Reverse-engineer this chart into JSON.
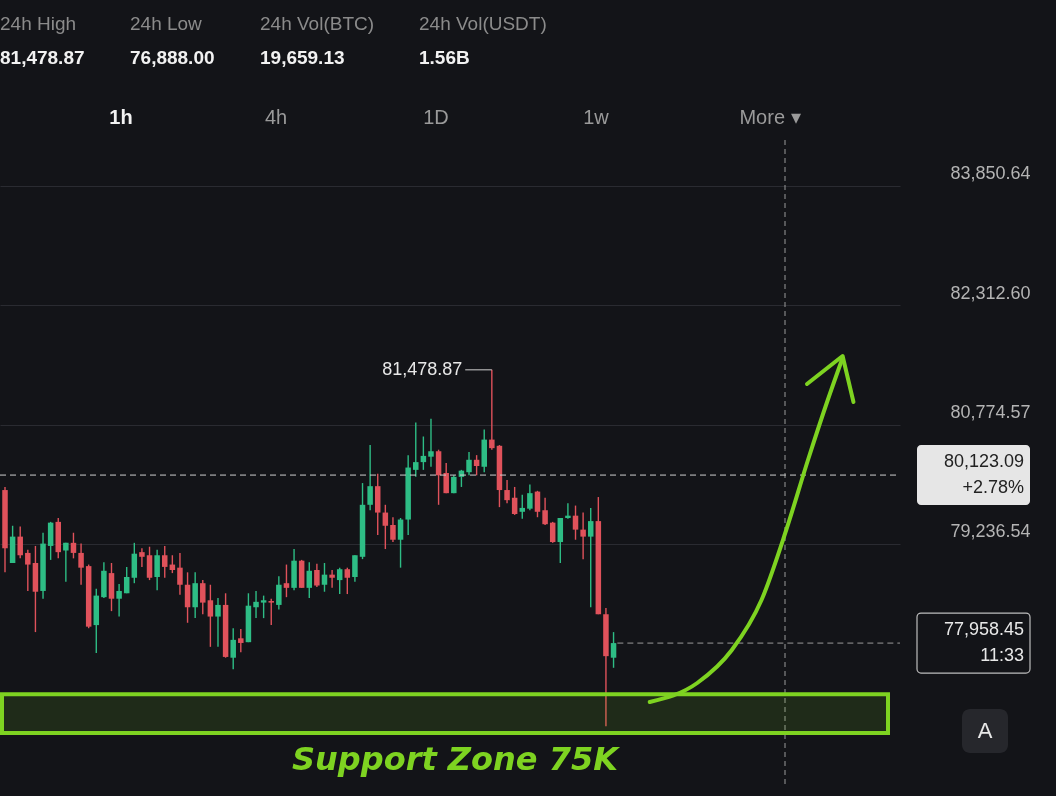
{
  "chart_data": {
    "type": "candlestick",
    "categories": [
      null,
      null,
      null,
      null,
      null,
      null,
      null,
      null,
      null,
      null,
      null,
      null,
      null,
      null,
      null,
      null,
      null,
      null,
      null,
      null,
      null,
      null,
      null,
      null,
      null,
      null,
      null,
      null,
      null,
      null,
      null,
      null,
      null,
      null,
      null,
      null,
      null,
      null,
      null,
      null,
      null,
      null,
      null,
      null,
      null,
      null,
      null,
      null,
      null,
      null,
      null,
      null,
      null,
      null,
      null,
      null,
      null,
      null,
      null,
      null,
      null,
      null,
      null,
      null,
      null,
      null,
      null,
      null,
      null,
      null,
      null,
      null,
      null,
      null,
      null,
      null,
      null,
      null,
      null,
      null,
      null,
      null,
      null,
      null,
      null,
      null,
      null,
      null,
      null,
      null,
      null,
      null,
      null,
      null,
      null,
      null,
      null,
      null,
      null,
      null,
      null,
      null,
      null,
      null,
      null,
      null,
      null,
      null,
      null,
      null,
      null,
      null,
      null,
      null,
      null,
      null,
      null,
      null
    ],
    "ohlc": [
      [
        79930,
        79970,
        78870,
        79180
      ],
      [
        78990,
        79470,
        78990,
        79330
      ],
      [
        79330,
        79460,
        79050,
        79090
      ],
      [
        79120,
        79160,
        78630,
        78970
      ],
      [
        78990,
        79210,
        78100,
        78620
      ],
      [
        78630,
        79380,
        78530,
        79240
      ],
      [
        79210,
        79520,
        79030,
        79510
      ],
      [
        79520,
        79570,
        79050,
        79130
      ],
      [
        79150,
        79250,
        78750,
        79250
      ],
      [
        79250,
        79380,
        79050,
        79120
      ],
      [
        79120,
        79240,
        78710,
        78930
      ],
      [
        78950,
        78970,
        78150,
        78170
      ],
      [
        78190,
        78660,
        77830,
        78570
      ],
      [
        78550,
        79000,
        78540,
        78890
      ],
      [
        78860,
        78990,
        78370,
        78530
      ],
      [
        78530,
        78720,
        78300,
        78630
      ],
      [
        78600,
        78940,
        78600,
        78810
      ],
      [
        78800,
        79250,
        78730,
        79110
      ],
      [
        79130,
        79180,
        78940,
        79070
      ],
      [
        79090,
        79200,
        78770,
        78800
      ],
      [
        78810,
        79160,
        78640,
        79090
      ],
      [
        79090,
        79210,
        78800,
        78940
      ],
      [
        78970,
        79090,
        78860,
        78900
      ],
      [
        78930,
        79120,
        78580,
        78710
      ],
      [
        78710,
        78870,
        78220,
        78420
      ],
      [
        78420,
        78870,
        78280,
        78730
      ],
      [
        78730,
        78770,
        78330,
        78480
      ],
      [
        78510,
        78710,
        77910,
        78300
      ],
      [
        78300,
        78540,
        77910,
        78450
      ],
      [
        78450,
        78600,
        77770,
        77780
      ],
      [
        77770,
        78150,
        77620,
        78000
      ],
      [
        78020,
        78140,
        77840,
        77960
      ],
      [
        77970,
        78600,
        77970,
        78440
      ],
      [
        78420,
        78630,
        78280,
        78490
      ],
      [
        78480,
        78570,
        78280,
        78510
      ],
      [
        78500,
        78530,
        78190,
        78480
      ],
      [
        78450,
        78820,
        78390,
        78710
      ],
      [
        78730,
        78970,
        78550,
        78670
      ],
      [
        78670,
        79170,
        78640,
        79020
      ],
      [
        79020,
        79030,
        78670,
        78670
      ],
      [
        78670,
        79000,
        78540,
        78890
      ],
      [
        78900,
        78980,
        78680,
        78700
      ],
      [
        78710,
        78990,
        78620,
        78840
      ],
      [
        78840,
        78900,
        78670,
        78800
      ],
      [
        78770,
        78930,
        78590,
        78910
      ],
      [
        78910,
        78930,
        78590,
        78800
      ],
      [
        78810,
        79090,
        78750,
        79090
      ],
      [
        79070,
        80020,
        79040,
        79740
      ],
      [
        79740,
        80510,
        79670,
        79980
      ],
      [
        79980,
        80140,
        79350,
        79640
      ],
      [
        79640,
        79740,
        79170,
        79470
      ],
      [
        79480,
        79580,
        79260,
        79290
      ],
      [
        79290,
        79570,
        78930,
        79550
      ],
      [
        79550,
        80380,
        79350,
        80220
      ],
      [
        80190,
        80800,
        80100,
        80290
      ],
      [
        80290,
        80620,
        80190,
        80370
      ],
      [
        80360,
        80850,
        80230,
        80430
      ],
      [
        80430,
        80450,
        79740,
        80120
      ],
      [
        80150,
        80280,
        79890,
        79890
      ],
      [
        79890,
        80120,
        79890,
        80100
      ],
      [
        80100,
        80190,
        79970,
        80180
      ],
      [
        80160,
        80420,
        80120,
        80320
      ],
      [
        80320,
        80380,
        80120,
        80240
      ],
      [
        80230,
        80710,
        80160,
        80580
      ],
      [
        80580,
        81478.87,
        80450,
        80470
      ],
      [
        80500,
        80510,
        79710,
        79930
      ],
      [
        79930,
        80060,
        79760,
        79800
      ],
      [
        79830,
        79970,
        79610,
        79620
      ],
      [
        79650,
        79870,
        79560,
        79700
      ],
      [
        79690,
        80000,
        79670,
        79890
      ],
      [
        79910,
        79920,
        79580,
        79650
      ],
      [
        79670,
        79830,
        79480,
        79490
      ],
      [
        79510,
        79520,
        79250,
        79260
      ],
      [
        79260,
        79570,
        78990,
        79570
      ],
      [
        79570,
        79760,
        79560,
        79600
      ],
      [
        79600,
        79730,
        79290,
        79420
      ],
      [
        79420,
        79640,
        79040,
        79330
      ],
      [
        79330,
        79700,
        78420,
        79530
      ],
      [
        79530,
        79840,
        78330,
        78330
      ],
      [
        78330,
        78410,
        76888.0,
        77790
      ],
      [
        77770,
        78100,
        77640,
        77958.45
      ],
      null,
      null,
      null,
      null,
      null,
      null,
      null,
      null,
      null,
      null,
      null,
      null,
      null,
      null,
      null,
      null,
      null,
      null,
      null,
      null,
      null,
      null,
      null,
      null,
      null,
      null,
      null,
      null,
      null,
      null,
      null,
      null,
      null,
      null,
      null,
      null,
      null
    ],
    "colors": [
      "#e0525b",
      "#2ebd85",
      "#e0525b",
      "#e0525b",
      "#e0525b",
      "#2ebd85",
      "#2ebd85",
      "#e0525b",
      "#2ebd85",
      "#e0525b",
      "#e0525b",
      "#e0525b",
      "#2ebd85",
      "#2ebd85",
      "#e0525b",
      "#2ebd85",
      "#2ebd85",
      "#2ebd85",
      "#e0525b",
      "#e0525b",
      "#2ebd85",
      "#e0525b",
      "#e0525b",
      "#e0525b",
      "#e0525b",
      "#2ebd85",
      "#e0525b",
      "#e0525b",
      "#2ebd85",
      "#e0525b",
      "#2ebd85",
      "#e0525b",
      "#2ebd85",
      "#2ebd85",
      "#2ebd85",
      "#e0525b",
      "#2ebd85",
      "#e0525b",
      "#2ebd85",
      "#e0525b",
      "#2ebd85",
      "#e0525b",
      "#2ebd85",
      "#e0525b",
      "#2ebd85",
      "#e0525b",
      "#2ebd85",
      "#2ebd85",
      "#2ebd85",
      "#e0525b",
      "#e0525b",
      "#e0525b",
      "#2ebd85",
      "#2ebd85",
      "#2ebd85",
      "#2ebd85",
      "#2ebd85",
      "#e0525b",
      "#e0525b",
      "#2ebd85",
      "#2ebd85",
      "#2ebd85",
      "#e0525b",
      "#2ebd85",
      "#e0525b",
      "#e0525b",
      "#e0525b",
      "#e0525b",
      "#2ebd85",
      "#2ebd85",
      "#e0525b",
      "#e0525b",
      "#e0525b",
      "#2ebd85",
      "#2ebd85",
      "#e0525b",
      "#e0525b",
      "#2ebd85",
      "#e0525b",
      "#e0525b",
      "#2ebd85",
      null,
      null,
      null,
      null,
      null,
      null,
      null,
      null,
      null,
      null,
      null,
      null,
      null,
      null,
      null,
      null,
      null,
      null,
      null,
      null,
      null,
      null,
      null,
      null,
      null,
      null,
      null,
      null,
      null,
      null,
      null,
      null,
      null,
      null,
      null,
      null,
      null
    ],
    "ylim": [
      76130,
      84440
    ],
    "yticks": [
      {
        "value": 83850.64,
        "label": "83,850.64"
      },
      {
        "value": 82312.6,
        "label": "82,312.60"
      },
      {
        "value": 80774.57,
        "label": "80,774.57"
      },
      {
        "value": 79236.54,
        "label": "79,236.54"
      }
    ],
    "grid": "y",
    "tick_labels": "y",
    "ref_lines": [
      {
        "axis": "y",
        "value": 80123.09,
        "label": "80,123.09 +2.78%",
        "line_style": "dashed",
        "color": "#cfcfcf"
      },
      {
        "axis": "y",
        "value": 77958.45,
        "label": "77,958.45 11:33",
        "line_style": "dashed",
        "color": "#9a9a9a"
      }
    ],
    "bands": [
      {
        "axis": "y",
        "from": 76800,
        "to": 77300,
        "label": "Support Zone 75K",
        "color": "#7ed321"
      }
    ],
    "annotations": [
      "24h High",
      "81,478.87",
      "24h Low",
      "76,888.00",
      "24h Vol(BTC)",
      "19,659.13",
      "24h Vol(USDT)",
      "1.56B",
      "1h",
      "4h",
      "1D",
      "1w",
      "More ▾",
      "A",
      "81,478.87"
    ]
  }
}
